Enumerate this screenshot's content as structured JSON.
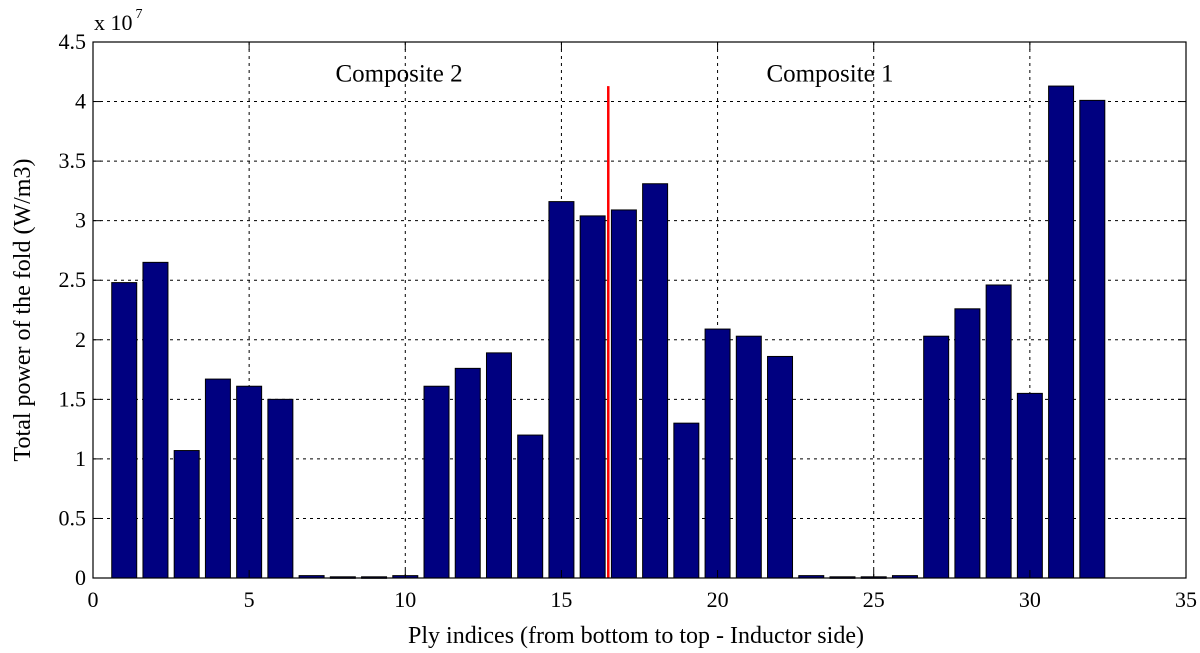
{
  "chart_data": {
    "type": "bar",
    "title": "",
    "xlabel": "Ply indices (from bottom to top - Inductor side)",
    "ylabel": "Total power of the fold (W/m3)",
    "y_multiplier": "x 10",
    "y_multiplier_exponent": "7",
    "xlim": [
      0,
      35
    ],
    "ylim": [
      0,
      4.5
    ],
    "x_ticks": [
      0,
      5,
      10,
      15,
      20,
      25,
      30,
      35
    ],
    "x_tick_labels": [
      "0",
      "5",
      "10",
      "15",
      "20",
      "25",
      "30",
      "35"
    ],
    "y_ticks": [
      0,
      0.5,
      1,
      1.5,
      2,
      2.5,
      3,
      3.5,
      4,
      4.5
    ],
    "y_tick_labels": [
      "0",
      "0.5",
      "1",
      "1.5",
      "2",
      "2.5",
      "3",
      "3.5",
      "4",
      "4.5"
    ],
    "grid": true,
    "categories": [
      1,
      2,
      3,
      4,
      5,
      6,
      7,
      8,
      9,
      10,
      11,
      12,
      13,
      14,
      15,
      16,
      17,
      18,
      19,
      20,
      21,
      22,
      23,
      24,
      25,
      26,
      27,
      28,
      29,
      30,
      31,
      32
    ],
    "values": [
      2.48,
      2.65,
      1.07,
      1.67,
      1.61,
      1.5,
      0.02,
      0.01,
      0.01,
      0.02,
      1.61,
      1.76,
      1.89,
      1.2,
      3.16,
      3.04,
      3.09,
      3.31,
      1.3,
      2.09,
      2.03,
      1.86,
      0.02,
      0.01,
      0.01,
      0.02,
      2.03,
      2.26,
      2.46,
      1.55,
      4.13,
      4.01
    ],
    "bar_width": 0.8,
    "bar_color": "#000080",
    "divider": {
      "x": 16.5,
      "y_top": 4.13,
      "color": "#ff0000"
    },
    "annotations": [
      {
        "text": "Composite 2",
        "x": 9.8,
        "y": 4.17
      },
      {
        "text": "Composite 1",
        "x": 23.6,
        "y": 4.17
      }
    ]
  }
}
